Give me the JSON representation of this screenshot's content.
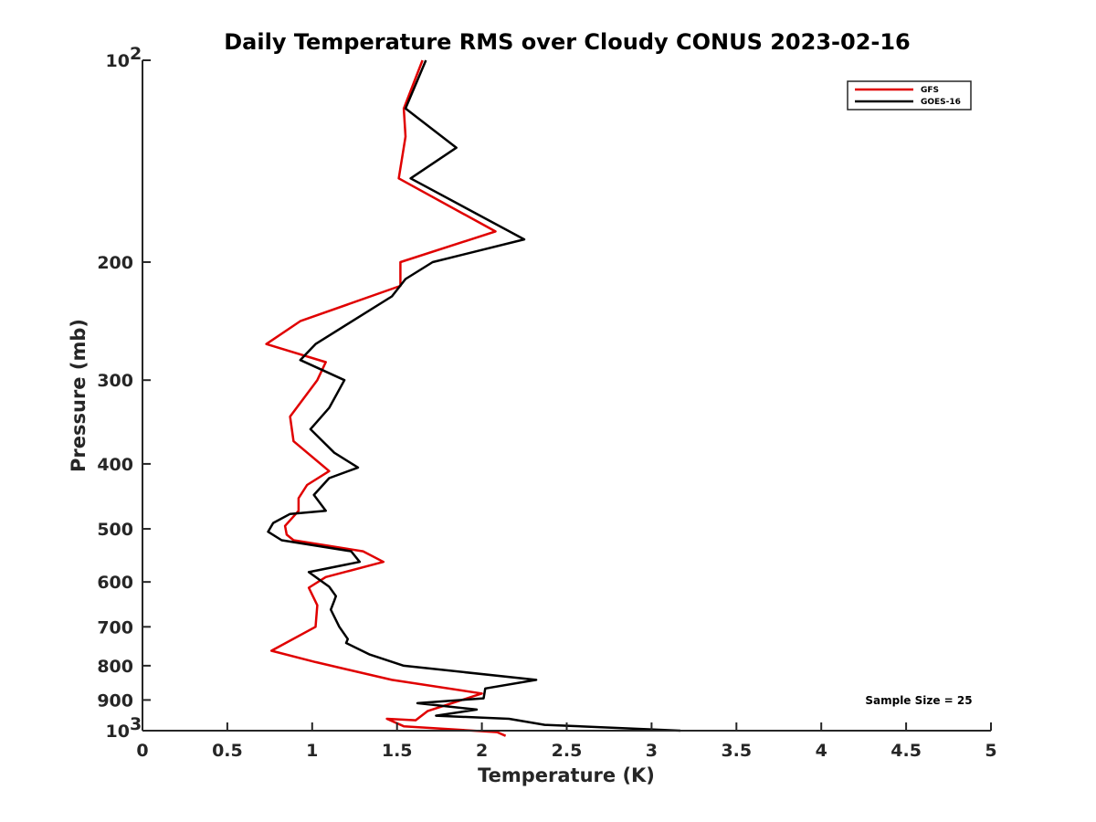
{
  "chart_data": {
    "type": "line",
    "title": "Daily Temperature RMS over Cloudy CONUS 2023-02-16",
    "xlabel": "Temperature (K)",
    "ylabel": "Pressure (mb)",
    "xlim": [
      0,
      5
    ],
    "ylim": [
      100,
      1000
    ],
    "yscale": "log",
    "y_reversed": true,
    "x_ticks": [
      0,
      0.5,
      1,
      1.5,
      2,
      2.5,
      3,
      3.5,
      4,
      4.5,
      5
    ],
    "x_tick_labels": [
      "0",
      "0.5",
      "1",
      "1.5",
      "2",
      "2.5",
      "3",
      "3.5",
      "4",
      "4.5",
      "5"
    ],
    "y_ticks": [
      {
        "value": 100,
        "label": "10",
        "sup": "2"
      },
      {
        "value": 200,
        "label": "200",
        "sup": ""
      },
      {
        "value": 300,
        "label": "300",
        "sup": ""
      },
      {
        "value": 400,
        "label": "400",
        "sup": ""
      },
      {
        "value": 500,
        "label": "500",
        "sup": ""
      },
      {
        "value": 600,
        "label": "600",
        "sup": ""
      },
      {
        "value": 700,
        "label": "700",
        "sup": ""
      },
      {
        "value": 800,
        "label": "800",
        "sup": ""
      },
      {
        "value": 900,
        "label": "900",
        "sup": ""
      },
      {
        "value": 1000,
        "label": "10",
        "sup": "3"
      }
    ],
    "grid": false,
    "legend_position": "top-right",
    "series": [
      {
        "name": "GFS",
        "color": "#e00000",
        "x": [
          1.65,
          1.54,
          1.55,
          1.51,
          2.08,
          1.52,
          1.52,
          0.93,
          0.73,
          1.08,
          1.03,
          0.87,
          0.89,
          1.1,
          0.97,
          0.92,
          0.92,
          0.84,
          0.85,
          0.89,
          1.3,
          1.42,
          1.08,
          0.98,
          1.03,
          1.02,
          0.76,
          1.02,
          1.47,
          2.0,
          1.68,
          1.61,
          1.44,
          1.54,
          2.09,
          2.14
        ],
        "y": [
          100,
          118,
          130,
          150,
          180,
          200,
          217,
          245,
          265,
          282,
          300,
          340,
          370,
          410,
          430,
          450,
          470,
          495,
          510,
          520,
          540,
          560,
          590,
          612,
          650,
          700,
          760,
          790,
          840,
          880,
          935,
          965,
          960,
          985,
          1005,
          1018
        ]
      },
      {
        "name": "GOES-16",
        "color": "#000000",
        "x": [
          1.67,
          1.55,
          1.85,
          1.58,
          2.25,
          1.71,
          1.55,
          1.47,
          1.02,
          0.93,
          1.19,
          1.1,
          0.99,
          1.13,
          1.27,
          1.1,
          1.01,
          1.08,
          0.87,
          0.77,
          0.74,
          0.82,
          1.23,
          1.28,
          0.98,
          1.1,
          1.14,
          1.13,
          1.11,
          1.16,
          1.21,
          1.2,
          1.34,
          1.54,
          2.32,
          2.02,
          2.01,
          1.62,
          1.97,
          1.73,
          2.16,
          2.37,
          3.17
        ],
        "y": [
          100,
          118,
          135,
          150,
          185,
          200,
          212,
          225,
          265,
          280,
          300,
          330,
          355,
          385,
          405,
          420,
          445,
          470,
          475,
          490,
          505,
          520,
          540,
          560,
          580,
          610,
          630,
          640,
          660,
          700,
          730,
          740,
          770,
          800,
          840,
          865,
          895,
          910,
          930,
          950,
          960,
          980,
          1000
        ]
      }
    ],
    "annotations": [
      {
        "text": "Sample Size = 25"
      }
    ]
  }
}
